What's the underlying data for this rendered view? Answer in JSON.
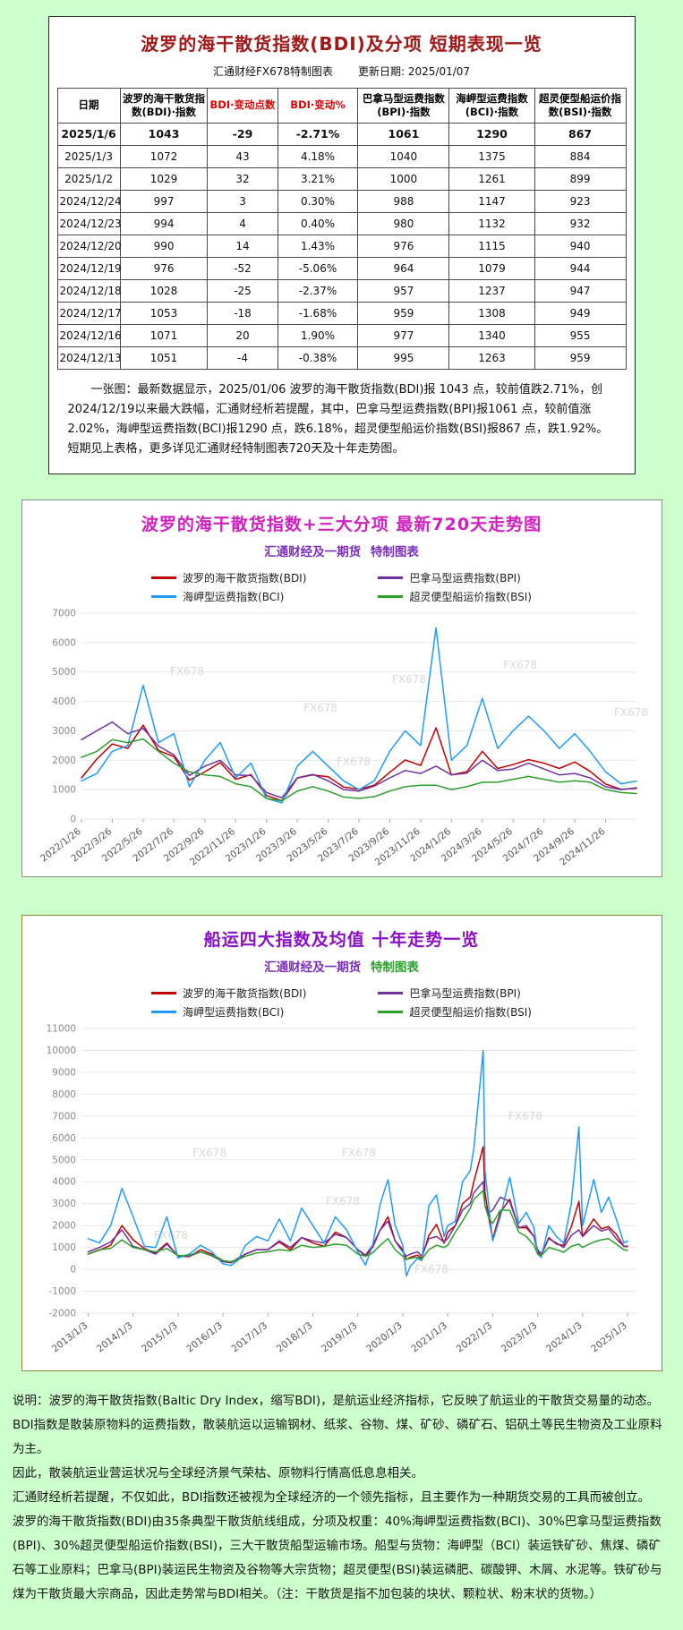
{
  "page": {
    "background": "#ccffcc"
  },
  "table_card": {
    "title": "波罗的海干散货指数(BDI)及分项 短期表现一览",
    "subtitle_left": "汇通财经FX678特制图表",
    "subtitle_right": "更新日期: 2025/01/07",
    "columns": [
      "日期",
      "波罗的海干散货指数(BDI)·指数",
      "BDI·变动点数",
      "BDI·变动%",
      "巴拿马型运费指数(BPI)·指数",
      "海岬型运费指数(BCI)·指数",
      "超灵便型船运价指数(BSI)·指数"
    ],
    "red_columns": [
      2,
      3
    ],
    "rows": [
      [
        "2025/1/6",
        "1043",
        "-29",
        "-2.71%",
        "1061",
        "1290",
        "867"
      ],
      [
        "2025/1/3",
        "1072",
        "43",
        "4.18%",
        "1040",
        "1375",
        "884"
      ],
      [
        "2025/1/2",
        "1029",
        "32",
        "3.21%",
        "1000",
        "1261",
        "899"
      ],
      [
        "2024/12/24",
        "997",
        "3",
        "0.30%",
        "988",
        "1147",
        "923"
      ],
      [
        "2024/12/23",
        "994",
        "4",
        "0.40%",
        "980",
        "1132",
        "932"
      ],
      [
        "2024/12/20",
        "990",
        "14",
        "1.43%",
        "976",
        "1115",
        "940"
      ],
      [
        "2024/12/19",
        "976",
        "-52",
        "-5.06%",
        "964",
        "1079",
        "944"
      ],
      [
        "2024/12/18",
        "1028",
        "-25",
        "-2.37%",
        "957",
        "1237",
        "947"
      ],
      [
        "2024/12/17",
        "1053",
        "-18",
        "-1.68%",
        "959",
        "1308",
        "949"
      ],
      [
        "2024/12/16",
        "1071",
        "20",
        "1.90%",
        "977",
        "1340",
        "955"
      ],
      [
        "2024/12/13",
        "1051",
        "-4",
        "-0.38%",
        "995",
        "1263",
        "959"
      ]
    ],
    "note": "一张图：最新数据显示，2025/01/06 波罗的海干散货指数(BDI)报 1043 点，较前值跌2.71%，创2024/12/19以来最大跌幅，汇通财经析若提醒，其中，巴拿马型运费指数(BPI)报1061 点，较前值涨2.02%，海岬型运费指数(BCI)报1290 点，跌6.18%，超灵便型船运价指数(BSI)报867 点，跌1.92%。短期见上表格，更多详见汇通财经特制图表720天及十年走势图。"
  },
  "chart_data": [
    {
      "type": "line",
      "title": "波罗的海干散货指数+三大分项  最新720天走势图",
      "subtitle_part1": "汇通财经及一期货",
      "subtitle_part2": "特制图表",
      "xlabel": "",
      "ylabel": "",
      "grid": true,
      "legend_position": "top",
      "watermark": "FX678",
      "watermarks": [
        [
          0.16,
          0.3
        ],
        [
          0.4,
          0.48
        ],
        [
          0.56,
          0.34
        ],
        [
          0.76,
          0.27
        ],
        [
          0.96,
          0.5
        ],
        [
          0.46,
          0.74
        ]
      ],
      "xlim": [
        0,
        36
      ],
      "ylim": [
        0,
        7000
      ],
      "yticks": [
        0,
        1000,
        2000,
        3000,
        4000,
        5000,
        6000,
        7000
      ],
      "xticks": [
        0,
        2,
        4,
        6,
        8,
        10,
        12,
        14,
        16,
        18,
        20,
        22,
        24,
        26,
        28,
        30,
        32,
        34
      ],
      "xtick_labels": [
        "2022/1/26",
        "2022/3/26",
        "2022/5/26",
        "2022/7/26",
        "2022/9/26",
        "2022/11/26",
        "2023/1/26",
        "2023/3/26",
        "2023/5/26",
        "2023/7/26",
        "2023/9/26",
        "2023/11/26",
        "2024/1/26",
        "2024/3/26",
        "2024/5/26",
        "2024/7/26",
        "2024/9/26",
        "2024/11/26"
      ],
      "x": [
        0,
        1,
        2,
        3,
        4,
        5,
        6,
        7,
        8,
        9,
        10,
        11,
        12,
        13,
        14,
        15,
        16,
        17,
        18,
        19,
        20,
        21,
        22,
        23,
        24,
        25,
        26,
        27,
        28,
        29,
        30,
        31,
        32,
        33,
        34,
        35,
        36
      ],
      "series": [
        {
          "name": "波罗的海干散货指数(BDI)",
          "color": "#c00000",
          "values": [
            1400,
            2040,
            2550,
            2400,
            3190,
            2330,
            2120,
            1320,
            1600,
            1920,
            1350,
            1510,
            800,
            620,
            1390,
            1500,
            1440,
            1090,
            1010,
            1150,
            1590,
            2010,
            1820,
            3100,
            1500,
            1610,
            2300,
            1720,
            1850,
            2020,
            1900,
            1720,
            1940,
            1620,
            1190,
            1010,
            1043
          ]
        },
        {
          "name": "巴拿马型运费指数(BPI)",
          "color": "#7030a0",
          "values": [
            2700,
            3000,
            3300,
            2900,
            3080,
            2480,
            2180,
            1480,
            1800,
            2000,
            1500,
            1480,
            900,
            720,
            1400,
            1520,
            1300,
            1000,
            950,
            1120,
            1400,
            1650,
            1550,
            1800,
            1500,
            1560,
            2000,
            1650,
            1700,
            1900,
            1700,
            1500,
            1550,
            1400,
            1100,
            1000,
            1061
          ]
        },
        {
          "name": "海岬型运费指数(BCI)",
          "color": "#1f9bff",
          "values": [
            1300,
            1550,
            2300,
            2500,
            4550,
            2600,
            2900,
            1100,
            2000,
            2600,
            1400,
            1900,
            700,
            550,
            1800,
            2300,
            1800,
            1300,
            1000,
            1300,
            2300,
            3000,
            2500,
            6500,
            2000,
            2500,
            4100,
            2400,
            3000,
            3500,
            3000,
            2400,
            2900,
            2300,
            1600,
            1200,
            1290
          ]
        },
        {
          "name": "超灵便型船运价指数(BSI)",
          "color": "#2ca02c",
          "values": [
            2100,
            2300,
            2700,
            2600,
            2720,
            2300,
            1900,
            1600,
            1500,
            1450,
            1200,
            1100,
            700,
            620,
            950,
            1100,
            950,
            750,
            700,
            760,
            950,
            1100,
            1150,
            1150,
            1000,
            1100,
            1250,
            1250,
            1350,
            1450,
            1350,
            1250,
            1300,
            1250,
            1000,
            900,
            867
          ]
        }
      ]
    },
    {
      "type": "line",
      "title": "船运四大指数及均值 十年走势一览",
      "subtitle_part1": "汇通财经及一期货",
      "subtitle_part2": "特制图表",
      "xlabel": "",
      "ylabel": "",
      "grid": true,
      "legend_position": "top",
      "watermark": "FX678",
      "watermarks": [
        [
          0.2,
          0.45
        ],
        [
          0.47,
          0.45
        ],
        [
          0.44,
          0.62
        ],
        [
          0.6,
          0.86
        ],
        [
          0.13,
          0.74
        ],
        [
          0.77,
          0.32
        ]
      ],
      "xlim": [
        2012.85,
        2025.2
      ],
      "ylim": [
        -2000,
        11000
      ],
      "yticks": [
        -2000,
        -1000,
        0,
        1000,
        2000,
        3000,
        4000,
        5000,
        6000,
        7000,
        8000,
        9000,
        10000,
        11000
      ],
      "xticks": [
        2013,
        2014,
        2015,
        2016,
        2017,
        2018,
        2019,
        2020,
        2021,
        2022,
        2023,
        2024,
        2025
      ],
      "xtick_labels": [
        "2013/1/3",
        "2014/1/3",
        "2015/1/3",
        "2016/1/3",
        "2017/1/3",
        "2018/1/3",
        "2019/1/3",
        "2020/1/3",
        "2021/1/3",
        "2022/1/3",
        "2023/1/3",
        "2024/1/3",
        "2025/1/3"
      ],
      "x": [
        2013.0,
        2013.25,
        2013.5,
        2013.75,
        2014.0,
        2014.25,
        2014.5,
        2014.75,
        2015.0,
        2015.25,
        2015.5,
        2015.75,
        2016.0,
        2016.17,
        2016.33,
        2016.5,
        2016.75,
        2017.0,
        2017.25,
        2017.5,
        2017.75,
        2018.0,
        2018.25,
        2018.5,
        2018.75,
        2019.0,
        2019.17,
        2019.33,
        2019.5,
        2019.67,
        2019.83,
        2020.0,
        2020.08,
        2020.17,
        2020.33,
        2020.42,
        2020.58,
        2020.75,
        2020.92,
        2021.0,
        2021.17,
        2021.33,
        2021.5,
        2021.58,
        2021.79,
        2021.83,
        2021.92,
        2022.0,
        2022.17,
        2022.38,
        2022.58,
        2022.75,
        2022.92,
        2023.0,
        2023.08,
        2023.25,
        2023.42,
        2023.58,
        2023.75,
        2023.92,
        2024.0,
        2024.25,
        2024.42,
        2024.58,
        2024.75,
        2024.92,
        2025.0
      ],
      "series": [
        {
          "name": "波罗的海干散货指数(BDI)",
          "color": "#c00000",
          "values": [
            700,
            880,
            1100,
            2000,
            1350,
            950,
            750,
            1200,
            600,
            580,
            900,
            700,
            400,
            300,
            450,
            700,
            900,
            900,
            1250,
            900,
            1450,
            1200,
            1050,
            1700,
            1450,
            900,
            600,
            1000,
            1800,
            2400,
            1300,
            900,
            450,
            550,
            650,
            500,
            1550,
            2050,
            1200,
            1700,
            2000,
            3000,
            3300,
            4000,
            5600,
            3500,
            2300,
            1400,
            2600,
            3200,
            1900,
            1900,
            1500,
            800,
            620,
            1450,
            1150,
            1100,
            1950,
            3100,
            1500,
            2300,
            1850,
            1950,
            1600,
            1050,
            1043
          ]
        },
        {
          "name": "巴拿马型运费指数(BPI)",
          "color": "#7030a0",
          "values": [
            800,
            1000,
            1250,
            1800,
            1050,
            900,
            700,
            1150,
            620,
            600,
            800,
            620,
            350,
            300,
            500,
            700,
            900,
            900,
            1300,
            1000,
            1450,
            1300,
            1200,
            1600,
            1450,
            900,
            650,
            1100,
            1800,
            2200,
            1300,
            800,
            600,
            700,
            800,
            600,
            1400,
            1500,
            1250,
            1400,
            2000,
            2700,
            3000,
            3500,
            4000,
            2900,
            2600,
            2700,
            3300,
            3100,
            1900,
            2000,
            1500,
            900,
            720,
            1400,
            1200,
            1000,
            1550,
            1800,
            1500,
            2000,
            1750,
            1850,
            1400,
            1050,
            1061
          ]
        },
        {
          "name": "海岬型运费指数(BCI)",
          "color": "#1f9bff",
          "values": [
            1400,
            1200,
            2000,
            3700,
            2400,
            1050,
            1000,
            2400,
            520,
            700,
            1100,
            800,
            250,
            180,
            400,
            1100,
            1500,
            1300,
            2300,
            1300,
            2800,
            2000,
            1200,
            2400,
            1800,
            800,
            200,
            1100,
            3000,
            4100,
            2000,
            1100,
            -300,
            150,
            500,
            400,
            2900,
            3400,
            1500,
            2000,
            2200,
            4000,
            4500,
            5500,
            10000,
            4500,
            2800,
            1300,
            2400,
            4200,
            2100,
            2600,
            1900,
            700,
            550,
            2000,
            1500,
            1200,
            3000,
            6500,
            2000,
            4100,
            2600,
            3300,
            2300,
            1200,
            1290
          ]
        },
        {
          "name": "超灵便型船运价指数(BSI)",
          "color": "#2ca02c",
          "values": [
            700,
            900,
            950,
            1350,
            1000,
            900,
            800,
            950,
            620,
            650,
            800,
            650,
            400,
            350,
            450,
            600,
            750,
            800,
            900,
            850,
            1100,
            1000,
            1050,
            1150,
            1100,
            700,
            600,
            750,
            1100,
            1400,
            900,
            600,
            450,
            500,
            550,
            450,
            900,
            1100,
            1000,
            1100,
            1700,
            2200,
            2800,
            3200,
            3600,
            2900,
            2300,
            2100,
            2700,
            2700,
            1700,
            1500,
            1100,
            700,
            620,
            1000,
            900,
            780,
            1050,
            1150,
            1000,
            1250,
            1350,
            1400,
            1150,
            900,
            867
          ]
        }
      ]
    }
  ],
  "footer": {
    "lines": [
      "说明：波罗的海干散货指数(Baltic Dry Index，缩写BDI)，是航运业经济指标，它反映了航运业的干散货交易量的动态。",
      "BDI指数是散装原物料的运费指数，散装航运以运输钢材、纸浆、谷物、煤、矿砂、磷矿石、铝矾土等民生物资及工业原料为主。",
      "因此，散装航运业营运状况与全球经济景气荣枯、原物料行情高低息息相关。",
      "汇通财经析若提醒，不仅如此，BDI指数还被视为全球经济的一个领先指标，且主要作为一种期货交易的工具而被创立。",
      "波罗的海干散货指数(BDI)由35条典型干散货航线组成，分项及权重：40%海岬型运费指数(BCI)、30%巴拿马型运费指数(BPI)、30%超灵便型船运价指数(BSI)，三大干散货船型运输市场。船型与货物：海岬型（BCI）装运铁矿砂、焦煤、磷矿石等工业原料；巴拿马(BPI)装运民生物资及谷物等大宗货物；超灵便型(BSI)装运磷肥、碳酸钾、木屑、水泥等。铁矿砂与煤为干散货最大宗商品，因此走势常与BDI相关。（注：干散货是指不加包装的块状、颗粒状、粉末状的货物。）"
    ]
  }
}
